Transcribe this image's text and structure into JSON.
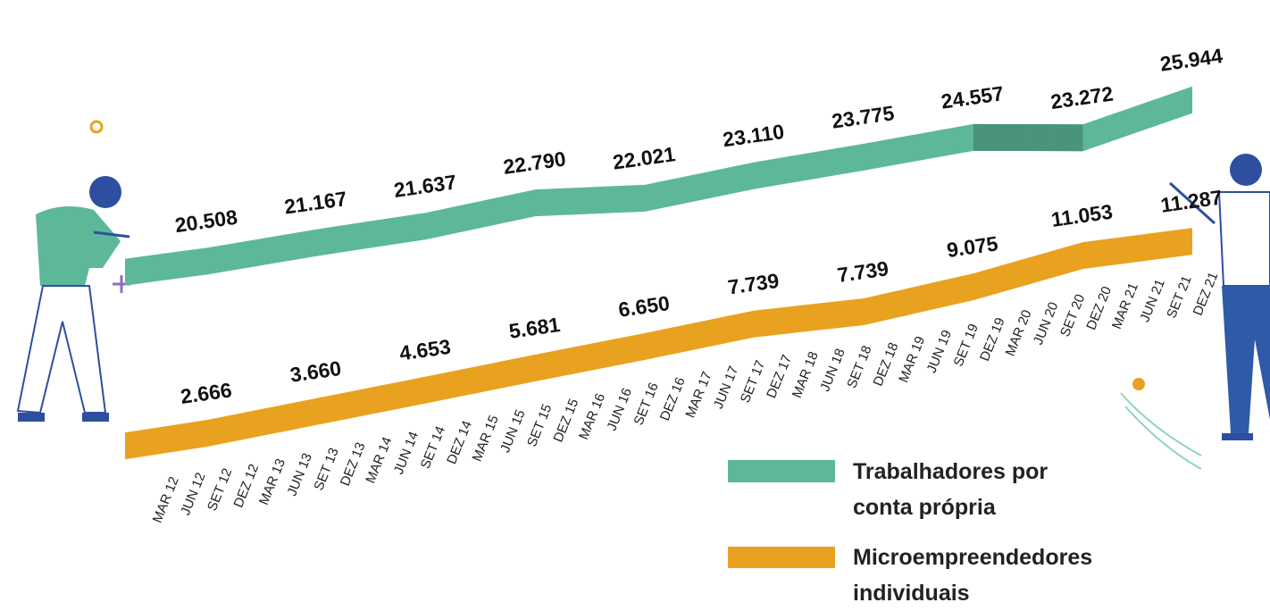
{
  "chart_data": {
    "type": "ribbon",
    "categories": [
      "MAR 12",
      "JUN 12",
      "SET 12",
      "DEZ 12",
      "MAR 13",
      "JUN 13",
      "SET 13",
      "DEZ 13",
      "MAR 14",
      "JUN 14",
      "SET 14",
      "DEZ 14",
      "MAR 15",
      "JUN 15",
      "SET 15",
      "DEZ 15",
      "MAR 16",
      "JUN 16",
      "SET 16",
      "DEZ 16",
      "MAR 17",
      "JUN 17",
      "SET 17",
      "DEZ 17",
      "MAR 18",
      "JUN 18",
      "SET 18",
      "DEZ 18",
      "MAR 19",
      "JUN 19",
      "SET 19",
      "DEZ 19",
      "MAR 20",
      "JUN 20",
      "SET 20",
      "DEZ 20",
      "MAR 21",
      "JUN 21",
      "SET 21",
      "DEZ 21"
    ],
    "series": [
      {
        "name": "Trabalhadores por conta própria",
        "color": "#5db89a",
        "values": [
          20300,
          20380,
          20450,
          20508,
          20673,
          20838,
          21002,
          21167,
          21285,
          21402,
          21520,
          21637,
          21925,
          22214,
          22502,
          22790,
          22598,
          22406,
          22213,
          22021,
          22293,
          22566,
          22838,
          23110,
          23276,
          23443,
          23609,
          23775,
          23971,
          24166,
          24362,
          24557,
          24236,
          23915,
          23593,
          23272,
          23940,
          24608,
          25276,
          25944
        ],
        "value_labels": [
          null,
          null,
          null,
          "20.508",
          null,
          null,
          null,
          "21.167",
          null,
          null,
          null,
          "21.637",
          null,
          null,
          null,
          "22.790",
          null,
          null,
          null,
          "22.021",
          null,
          null,
          null,
          "23.110",
          null,
          null,
          null,
          "23.775",
          null,
          null,
          null,
          "24.557",
          null,
          null,
          null,
          "23.272",
          null,
          null,
          null,
          "25.944"
        ]
      },
      {
        "name": "Microempreendedores individuais",
        "color": "#e9a21f",
        "values": [
          2300,
          2420,
          2540,
          2666,
          2915,
          3163,
          3412,
          3660,
          3908,
          4156,
          4405,
          4653,
          4910,
          5167,
          5424,
          5681,
          5923,
          6165,
          6408,
          6650,
          6922,
          7194,
          7467,
          7739,
          7739,
          7739,
          7739,
          7739,
          8073,
          8407,
          8741,
          9075,
          9570,
          10064,
          10559,
          11053,
          11112,
          11170,
          11229,
          11287
        ],
        "value_labels": [
          null,
          null,
          null,
          "2.666",
          null,
          null,
          null,
          "3.660",
          null,
          null,
          null,
          "4.653",
          null,
          null,
          null,
          "5.681",
          null,
          null,
          null,
          "6.650",
          null,
          null,
          null,
          "7.739",
          null,
          null,
          null,
          "7.739",
          null,
          null,
          null,
          "9.075",
          null,
          null,
          null,
          "11.053",
          null,
          null,
          null,
          "11.287"
        ]
      }
    ]
  }
}
